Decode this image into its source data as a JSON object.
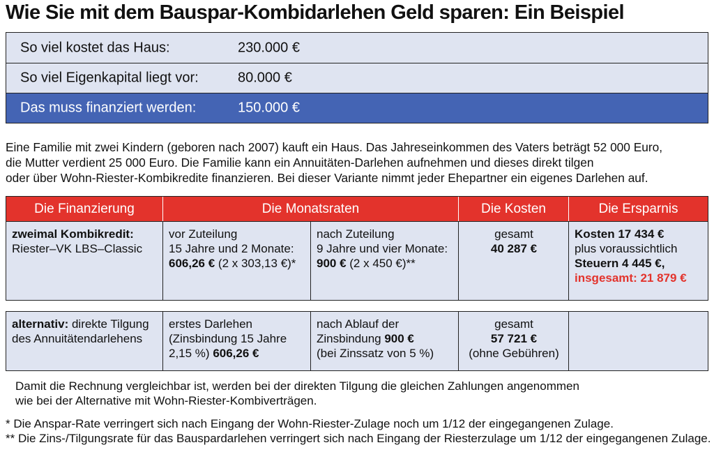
{
  "title": "Wie Sie mit dem Bauspar-Kombidarlehen Geld sparen: Ein Beispiel",
  "summary": [
    {
      "label": "So viel kostet das Haus:",
      "value": "230.000 €"
    },
    {
      "label": "So viel Eigenkapital liegt vor:",
      "value": "80.000 €"
    },
    {
      "label": "Das muss finanziert werden:",
      "value": "150.000 €"
    }
  ],
  "intro": [
    "Eine Familie mit zwei Kindern (geboren nach 2007) kauft ein Haus. Das Jahreseinkommen des Vaters beträgt 52 000 Euro,",
    "die Mutter verdient 25 000 Euro. Die Familie kann ein Annuitäten-Darlehen aufnehmen und dieses direkt tilgen",
    "oder über Wohn-Riester-Kombikredite finanzieren. Bei dieser Variante nimmt jeder Ehepartner ein eigenes Darlehen auf."
  ],
  "headers": [
    "Die Finanzierung",
    "Die Monatsraten",
    "Die Kosten",
    "Die Ersparnis"
  ],
  "row1": {
    "fin_title": "zweimal Kombikredit:",
    "fin_sub": "Riester–VK LBS–Classic",
    "rate1": [
      "vor Zuteilung",
      "15 Jahre und 2 Monate:"
    ],
    "rate1_bold": "606,26 €",
    "rate1_rest": " (2 x 303,13 €)*",
    "rate2": [
      "nach Zuteilung",
      "9 Jahre und vier Monate:"
    ],
    "rate2_bold": "900 €",
    "rate2_rest": " (2 x 450 €)**",
    "cost_label": "gesamt",
    "cost_value": "40 287 €",
    "save_line1": "Kosten 17 434 €",
    "save_line2": "plus voraussichtlich",
    "save_line3": "Steuern 4 445 €,",
    "save_total": "insgesamt: 21 879 €"
  },
  "row2": {
    "fin_bold": "alternativ:",
    "fin_rest": " direkte Tilgung",
    "fin_line2": "des Annuitätendarlehens",
    "rate1_line1": "erstes Darlehen",
    "rate1_line2": "(Zinsbindung 15 Jahre",
    "rate1_line3a": "2,15 %) ",
    "rate1_bold": "606,26 €",
    "rate2_line1": "nach Ablauf der",
    "rate2_line2a": "Zinsbindung ",
    "rate2_bold": "900 €",
    "rate2_line3": "(bei Zinssatz von 5 %)",
    "cost_label": "gesamt",
    "cost_value": "57 721 €",
    "cost_note": "(ohne Gebühren)"
  },
  "footer": [
    "Damit die Rechnung vergleichbar ist, werden bei der direkten Tilgung die gleichen Zahlungen angenommen",
    "wie bei der Alternative mit Wohn-Riester-Kombiverträgen.",
    "*  Die Anspar-Rate verringert sich nach Eingang der Wohn-Riester-Zulage noch um 1/12 der eingegangenen Zulage.",
    "** Die Zins-/Tilgungsrate für das Bauspardarlehen verringert sich nach Eingang der Riesterzulage um 1/12 der eingegangenen Zulage."
  ],
  "colors": {
    "light_blue": "#dfe4f1",
    "dark_blue": "#4464b4",
    "red": "#e3332c"
  }
}
